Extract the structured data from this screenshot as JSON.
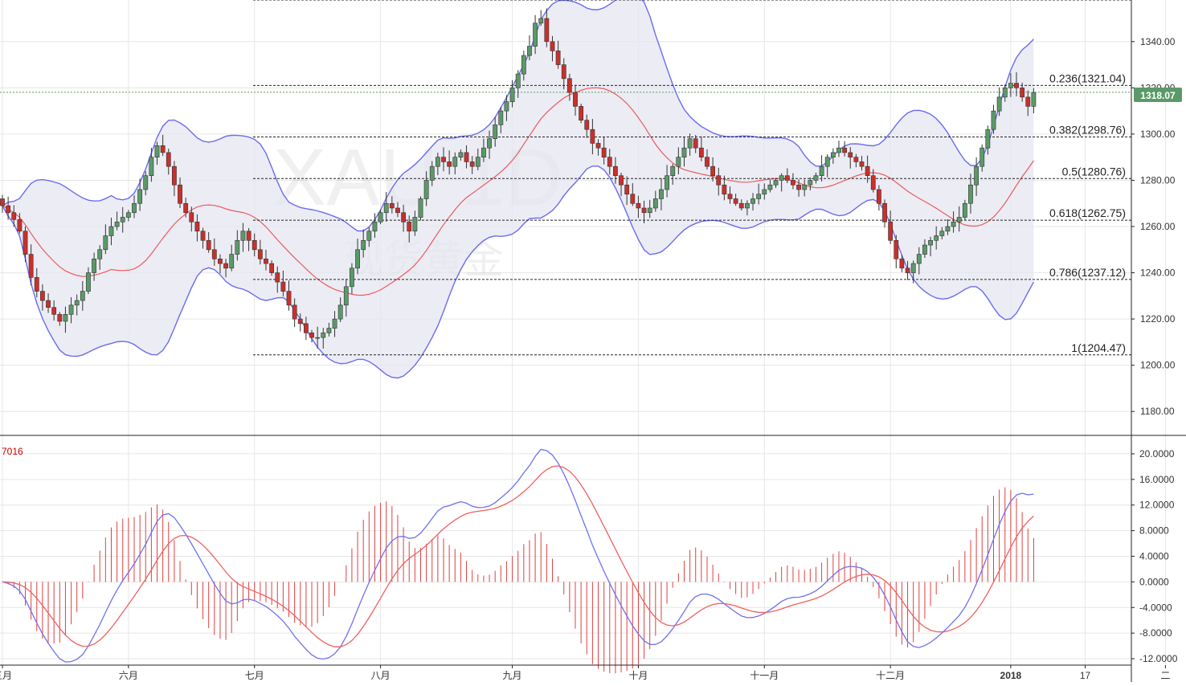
{
  "watermark": {
    "symbol": "XAU 1D",
    "cn_name": "现货黄金"
  },
  "price_badge": "1318.07",
  "macd_label_fragment": "7016",
  "price_axis": {
    "min": 1170,
    "max": 1358,
    "ticks": [
      "1180.00",
      "1200.00",
      "1220.00",
      "1240.00",
      "1260.00",
      "1280.00",
      "1300.00",
      "1320.00",
      "1340.00"
    ]
  },
  "macd_axis": {
    "min": -13,
    "max": 22.5,
    "ticks": [
      "-12.0000",
      "-8.0000",
      "-4.0000",
      "0.0000",
      "4.0000",
      "8.0000",
      "12.0000",
      "16.0000",
      "20.0000"
    ]
  },
  "time_axis": [
    {
      "label": "五月",
      "bar": 0
    },
    {
      "label": "六月",
      "bar": 22
    },
    {
      "label": "七月",
      "bar": 44
    },
    {
      "label": "八月",
      "bar": 66
    },
    {
      "label": "九月",
      "bar": 89
    },
    {
      "label": "十月",
      "bar": 111
    },
    {
      "label": "十一月",
      "bar": 133
    },
    {
      "label": "十二月",
      "bar": 155
    },
    {
      "label": "2018",
      "bar": 176,
      "bold": true
    },
    {
      "label": "17",
      "bar": 189
    },
    {
      "label": "二",
      "bar": 203
    }
  ],
  "fib_levels": [
    {
      "label": "",
      "value": 1358
    },
    {
      "label": "0.236(1321.04)",
      "value": 1321.04
    },
    {
      "label": "0.382(1298.76)",
      "value": 1298.76
    },
    {
      "label": "0.5(1280.76)",
      "value": 1280.76
    },
    {
      "label": "0.618(1262.75)",
      "value": 1262.75
    },
    {
      "label": "0.786(1237.12)",
      "value": 1237.12
    },
    {
      "label": "1(1204.47)",
      "value": 1204.47
    }
  ],
  "colors": {
    "up": "#5b9a68",
    "down": "#c9302c",
    "bollinger": "#6b6bf2",
    "band_fill": "#e6e6f2",
    "ma": "#ee5a5a",
    "macd_line": "#7070f0",
    "signal_line": "#f06060",
    "histogram": "#e04040",
    "badge": "#5b9a68",
    "grid": "#e6e6e6"
  },
  "chart_data": {
    "type": "candlestick",
    "instrument": "XAU 1D",
    "closes": [
      1269,
      1266,
      1263,
      1258,
      1248,
      1238,
      1232,
      1228,
      1225,
      1222,
      1219,
      1222,
      1226,
      1228,
      1232,
      1240,
      1246,
      1250,
      1256,
      1260,
      1262,
      1264,
      1266,
      1270,
      1276,
      1282,
      1290,
      1295,
      1292,
      1286,
      1278,
      1270,
      1266,
      1262,
      1258,
      1254,
      1250,
      1246,
      1244,
      1242,
      1248,
      1254,
      1258,
      1254,
      1250,
      1246,
      1244,
      1240,
      1236,
      1232,
      1226,
      1220,
      1218,
      1214,
      1212,
      1212,
      1214,
      1216,
      1220,
      1226,
      1234,
      1242,
      1250,
      1254,
      1258,
      1262,
      1266,
      1270,
      1268,
      1266,
      1262,
      1258,
      1264,
      1272,
      1280,
      1286,
      1290,
      1288,
      1286,
      1290,
      1292,
      1288,
      1286,
      1290,
      1294,
      1298,
      1304,
      1310,
      1314,
      1320,
      1326,
      1334,
      1338,
      1348,
      1350,
      1340,
      1336,
      1330,
      1324,
      1318,
      1312,
      1306,
      1302,
      1296,
      1294,
      1290,
      1286,
      1282,
      1278,
      1274,
      1270,
      1268,
      1266,
      1268,
      1272,
      1276,
      1282,
      1286,
      1290,
      1294,
      1298,
      1294,
      1290,
      1286,
      1282,
      1278,
      1274,
      1272,
      1270,
      1268,
      1270,
      1272,
      1274,
      1276,
      1278,
      1280,
      1282,
      1280,
      1278,
      1276,
      1278,
      1280,
      1282,
      1286,
      1290,
      1292,
      1294,
      1292,
      1290,
      1288,
      1286,
      1282,
      1276,
      1270,
      1262,
      1254,
      1246,
      1242,
      1240,
      1244,
      1248,
      1252,
      1254,
      1256,
      1258,
      1260,
      1262,
      1264,
      1270,
      1278,
      1286,
      1294,
      1302,
      1310,
      1316,
      1320,
      1322,
      1320,
      1316,
      1312,
      1318
    ],
    "x_labels": [
      "五月",
      "六月",
      "七月",
      "八月",
      "九月",
      "十月",
      "十一月",
      "十二月",
      "2018",
      "17",
      "二"
    ],
    "bollinger_period": 20,
    "moving_average_period": 20,
    "indicator": "MACD",
    "fibonacci": [
      {
        "ratio": "0.236",
        "price": 1321.04
      },
      {
        "ratio": "0.382",
        "price": 1298.76
      },
      {
        "ratio": "0.5",
        "price": 1280.76
      },
      {
        "ratio": "0.618",
        "price": 1262.75
      },
      {
        "ratio": "0.786",
        "price": 1237.12
      },
      {
        "ratio": "1",
        "price": 1204.47
      }
    ],
    "last_price": 1318.07,
    "price_range": [
      1170,
      1358
    ],
    "macd_range": [
      -13,
      22.5
    ],
    "grid": true
  }
}
